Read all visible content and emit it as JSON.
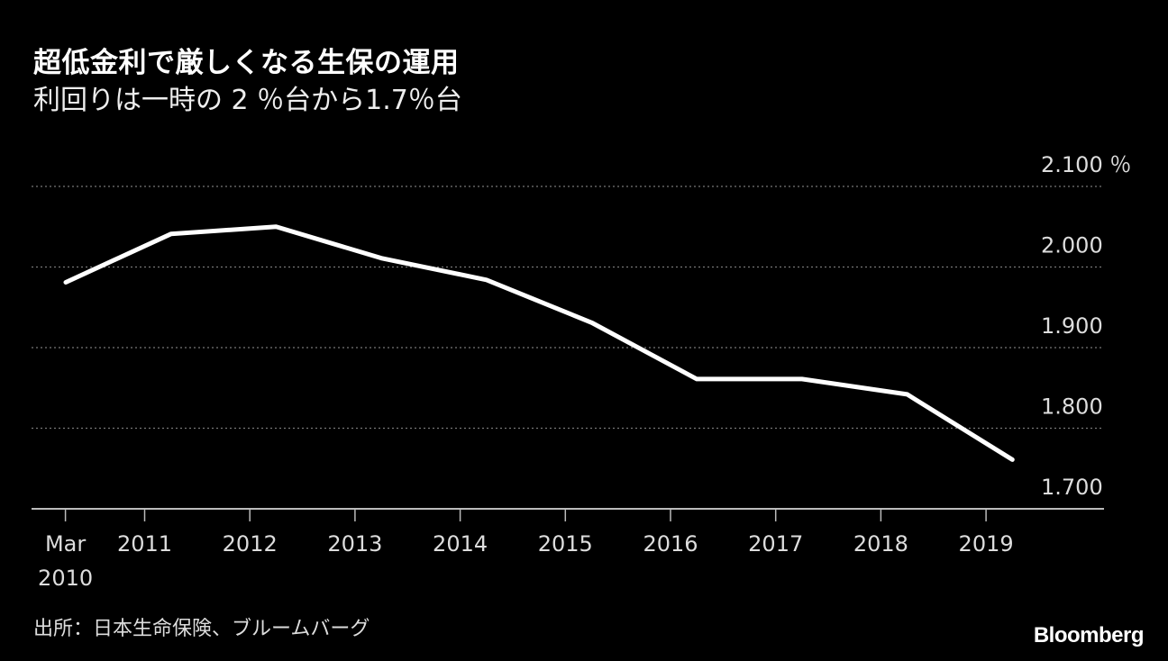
{
  "title": "超低金利で厳しくなる生保の運用",
  "subtitle": "利回りは一時の 2 ％台から1.7％台",
  "source": "出所：日本生命保険、ブルームバーグ",
  "logo": "Bloomberg",
  "colors": {
    "background": "#000000",
    "line": "#ffffff",
    "grid": "#777777"
  },
  "chart_data": {
    "type": "line",
    "title": "超低金利で厳しくなる生保の運用",
    "subtitle": "利回りは一時の 2 ％台から1.7％台",
    "x": [
      "2010-03",
      "2011-03",
      "2012-03",
      "2013-03",
      "2014-03",
      "2015-03",
      "2016-03",
      "2017-03",
      "2018-03",
      "2019-03"
    ],
    "series": [
      {
        "values": [
          1.981,
          2.041,
          2.05,
          2.011,
          1.984,
          1.931,
          1.861,
          1.861,
          1.842,
          1.761
        ]
      }
    ],
    "ylim": [
      1.7,
      2.1
    ],
    "yticks": [
      1.7,
      1.8,
      1.9,
      2.0,
      2.1
    ],
    "ytick_labels": [
      "1.700",
      "1.800",
      "1.900",
      "2.000",
      "2.100 ％"
    ],
    "xticks": [
      {
        "label": [
          "Mar",
          "2010"
        ],
        "year": 2010.25
      },
      {
        "label": [
          "2011"
        ],
        "year": 2011
      },
      {
        "label": [
          "2012"
        ],
        "year": 2012
      },
      {
        "label": [
          "2013"
        ],
        "year": 2013
      },
      {
        "label": [
          "2014"
        ],
        "year": 2014
      },
      {
        "label": [
          "2015"
        ],
        "year": 2015
      },
      {
        "label": [
          "2016"
        ],
        "year": 2016
      },
      {
        "label": [
          "2017"
        ],
        "year": 2017
      },
      {
        "label": [
          "2018"
        ],
        "year": 2018
      },
      {
        "label": [
          "2019"
        ],
        "year": 2019
      }
    ],
    "grid": "horizontal dotted",
    "y_axis_position": "right"
  }
}
